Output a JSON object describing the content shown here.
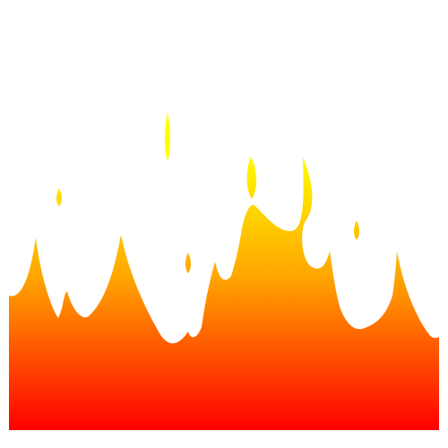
{
  "scene": {
    "subject": "fire-flames-icon",
    "background": "#ffffff",
    "gradient": {
      "top": "#ffff00",
      "middle": "#ffa500",
      "bottom": "#ff0000"
    }
  }
}
